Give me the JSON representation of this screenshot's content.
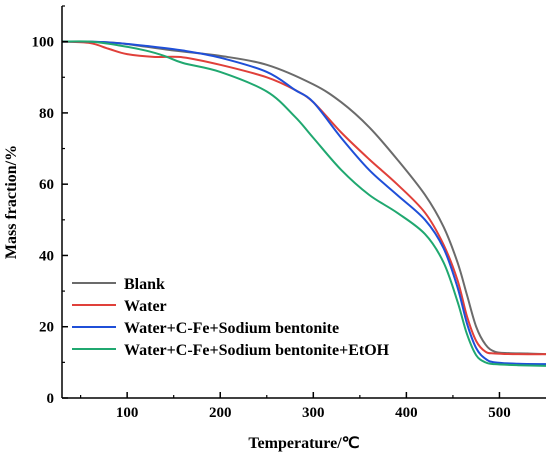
{
  "chart_data": {
    "type": "line",
    "title": "",
    "xlabel": "Temperature/℃",
    "ylabel": "Mass fraction/%",
    "xlim": [
      30,
      550
    ],
    "ylim": [
      0,
      110
    ],
    "xticks": [
      "100",
      "200",
      "300",
      "400",
      "500"
    ],
    "yticks": [
      "0",
      "20",
      "40",
      "60",
      "80",
      "100"
    ],
    "grid": false,
    "legend_position": "bottom-left",
    "series": [
      {
        "name": "Blank",
        "color": "#6b6b6b",
        "points": [
          [
            30,
            100
          ],
          [
            50,
            100
          ],
          [
            80,
            99.8
          ],
          [
            100,
            99.3
          ],
          [
            150,
            97.5
          ],
          [
            200,
            96
          ],
          [
            250,
            93.5
          ],
          [
            300,
            88
          ],
          [
            330,
            83
          ],
          [
            360,
            76
          ],
          [
            390,
            67
          ],
          [
            420,
            57
          ],
          [
            440,
            48
          ],
          [
            455,
            38
          ],
          [
            465,
            29
          ],
          [
            475,
            20
          ],
          [
            485,
            15
          ],
          [
            495,
            13
          ],
          [
            510,
            12.6
          ],
          [
            530,
            12.5
          ],
          [
            550,
            12.3
          ]
        ]
      },
      {
        "name": "Water",
        "color": "#e0403a",
        "points": [
          [
            30,
            100
          ],
          [
            60,
            99.6
          ],
          [
            80,
            98
          ],
          [
            100,
            96.5
          ],
          [
            130,
            95.7
          ],
          [
            160,
            95.6
          ],
          [
            200,
            93.5
          ],
          [
            250,
            90
          ],
          [
            280,
            86.5
          ],
          [
            300,
            83
          ],
          [
            330,
            74.5
          ],
          [
            360,
            67
          ],
          [
            390,
            60
          ],
          [
            420,
            52
          ],
          [
            440,
            43
          ],
          [
            455,
            33
          ],
          [
            465,
            23
          ],
          [
            475,
            16
          ],
          [
            485,
            13
          ],
          [
            495,
            12.5
          ],
          [
            520,
            12.3
          ],
          [
            550,
            12.3
          ]
        ]
      },
      {
        "name": "Water+C-Fe+Sodium bentonite",
        "color": "#1f4fd8",
        "points": [
          [
            30,
            100
          ],
          [
            60,
            100
          ],
          [
            90,
            99.6
          ],
          [
            120,
            98.8
          ],
          [
            160,
            97.5
          ],
          [
            200,
            95.5
          ],
          [
            250,
            91.5
          ],
          [
            280,
            86.5
          ],
          [
            300,
            83
          ],
          [
            330,
            73
          ],
          [
            360,
            64
          ],
          [
            390,
            57
          ],
          [
            420,
            50
          ],
          [
            440,
            42
          ],
          [
            455,
            31
          ],
          [
            465,
            21
          ],
          [
            475,
            14
          ],
          [
            485,
            11
          ],
          [
            495,
            10
          ],
          [
            520,
            9.6
          ],
          [
            550,
            9.5
          ]
        ]
      },
      {
        "name": "Water+C-Fe+Sodium bentonite+EtOH",
        "color": "#20a870",
        "points": [
          [
            30,
            100
          ],
          [
            60,
            100
          ],
          [
            90,
            99
          ],
          [
            120,
            97.5
          ],
          [
            140,
            96
          ],
          [
            160,
            94
          ],
          [
            200,
            91.5
          ],
          [
            250,
            86
          ],
          [
            280,
            79
          ],
          [
            300,
            73
          ],
          [
            330,
            64
          ],
          [
            360,
            57
          ],
          [
            390,
            52
          ],
          [
            420,
            46
          ],
          [
            440,
            38
          ],
          [
            455,
            27
          ],
          [
            465,
            18
          ],
          [
            475,
            12
          ],
          [
            485,
            10
          ],
          [
            495,
            9.5
          ],
          [
            520,
            9.2
          ],
          [
            550,
            9
          ]
        ]
      }
    ]
  }
}
